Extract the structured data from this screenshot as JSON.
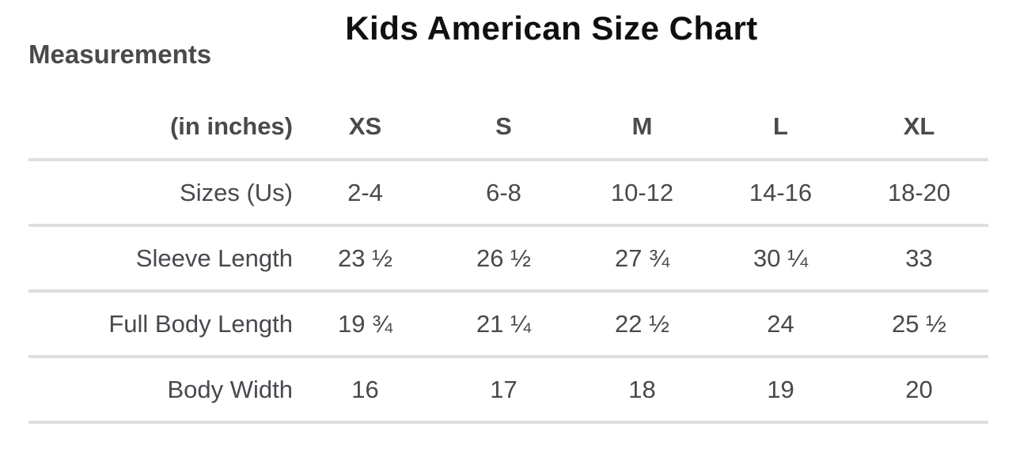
{
  "title": "Kids American Size Chart",
  "chart_data": {
    "type": "table",
    "title": "Kids American Size Chart",
    "corner_label_line1": "Measurements",
    "corner_label_line2": "(in inches)",
    "columns": [
      "XS",
      "S",
      "M",
      "L",
      "XL"
    ],
    "rows": [
      {
        "label": "Sizes (Us)",
        "values": [
          "2-4",
          "6-8",
          "10-12",
          "14-16",
          "18-20"
        ]
      },
      {
        "label": "Sleeve Length",
        "values": [
          "23 ½",
          "26 ½",
          "27 ¾",
          "30 ¼",
          "33"
        ]
      },
      {
        "label": "Full Body Length",
        "values": [
          "19 ¾",
          "21 ¼",
          "22 ½",
          "24",
          "25 ½"
        ]
      },
      {
        "label": "Body Width",
        "values": [
          "16",
          "17",
          "18",
          "19",
          "20"
        ]
      }
    ],
    "layout_hints": {
      "grid": "horizontal dividers only",
      "first_column_alignment": "right",
      "value_alignment": "center"
    }
  },
  "colors": {
    "background": "#ffffff",
    "title_text": "#101010",
    "header_text": "#4a4a4a",
    "body_text": "#47494e",
    "divider": "#dedde2"
  }
}
